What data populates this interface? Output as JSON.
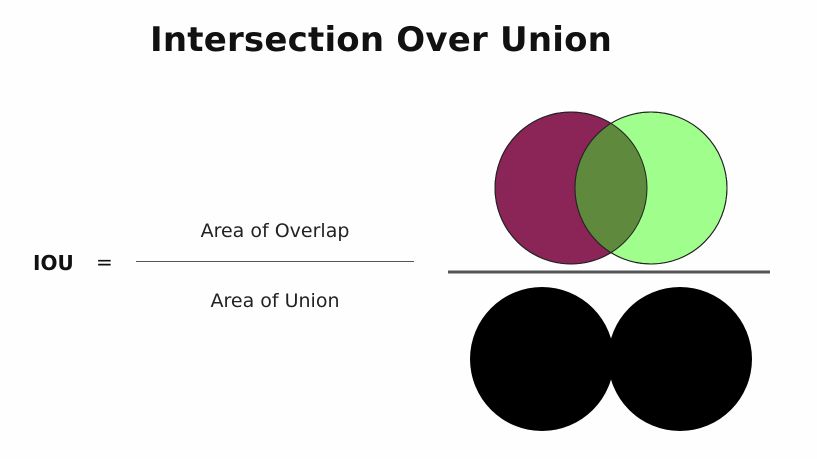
{
  "slide": {
    "title": "Intersection Over Union"
  },
  "formula": {
    "lhs": "IOU",
    "equals": "=",
    "numerator": "Area of Overlap",
    "denominator": "Area of Union"
  },
  "colors": {
    "box_a": "#8b2457",
    "box_b": "#a0ff8c",
    "overlap": "#5f8a3e",
    "union": "#000000",
    "divider": "#555555"
  }
}
